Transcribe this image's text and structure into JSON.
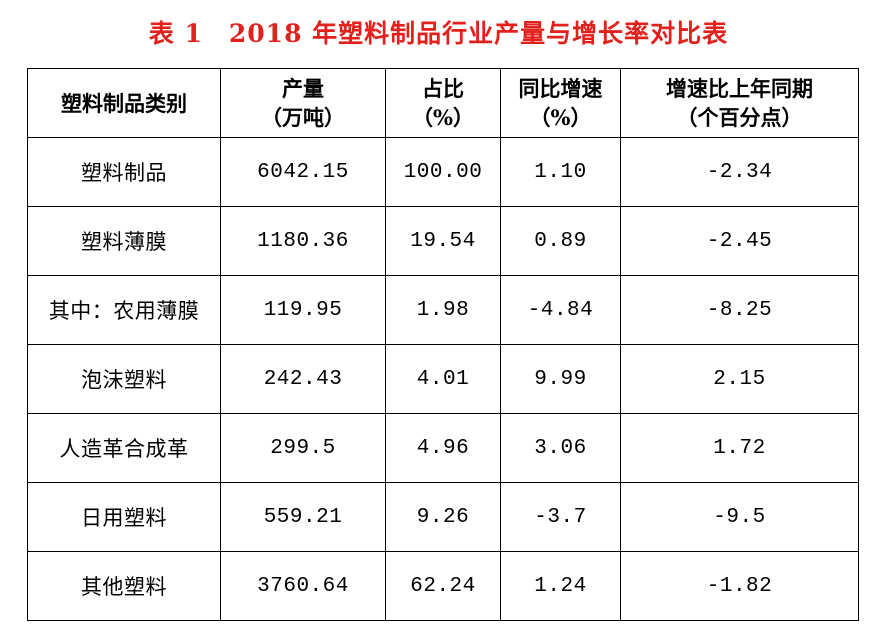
{
  "title": "表 1　2018 年塑料制品行业产量与增长率对比表",
  "table": {
    "header": [
      [
        "塑料制品类别"
      ],
      [
        "产量",
        "（万吨）"
      ],
      [
        "占比",
        "（%）"
      ],
      [
        "同比增速",
        "（%）"
      ],
      [
        "增速比上年同期",
        "（个百分点）"
      ]
    ],
    "rows": [
      [
        "塑料制品",
        "6042.15",
        "100.00",
        "1.10",
        "-2.34"
      ],
      [
        "塑料薄膜",
        "1180.36",
        "19.54",
        "0.89",
        "-2.45"
      ],
      [
        "其中：农用薄膜",
        "119.95",
        "1.98",
        "-4.84",
        "-8.25"
      ],
      [
        "泡沫塑料",
        "242.43",
        "4.01",
        "9.99",
        "2.15"
      ],
      [
        "人造革合成革",
        "299.5",
        "4.96",
        "3.06",
        "1.72"
      ],
      [
        "日用塑料",
        "559.21",
        "9.26",
        "-3.7",
        "-9.5"
      ],
      [
        "其他塑料",
        "3760.64",
        "62.24",
        "1.24",
        "-1.82"
      ]
    ]
  }
}
